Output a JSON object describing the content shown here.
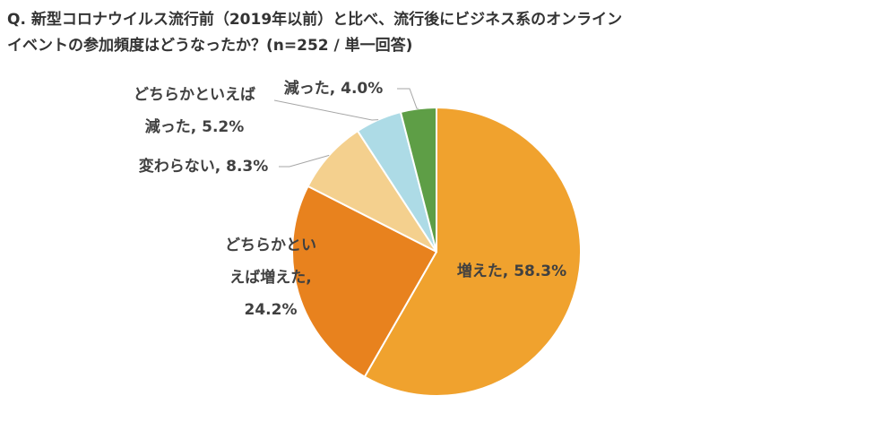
{
  "title_lines": [
    "Q. 新型コロナウイルス流行前（2019年以前）と比べ、流行後にビジネス系のオンライン",
    "イベントの参加頻度はどうなったか？(n=252 / 単一回答)"
  ],
  "chart_data": {
    "type": "pie",
    "start_angle_deg": 0,
    "direction": "clockwise",
    "slices": [
      {
        "label_lines": [
          "増えた, 58.3%"
        ],
        "category": "増えた",
        "value": 58.3,
        "color": "#F0A22E"
      },
      {
        "label_lines": [
          "どちらかとい",
          "えば増えた,",
          "24.2%"
        ],
        "category": "どちらかといえば増えた",
        "value": 24.2,
        "color": "#E8821E"
      },
      {
        "label_lines": [
          "変わらない, 8.3%"
        ],
        "category": "変わらない",
        "value": 8.3,
        "color": "#F4D08E"
      },
      {
        "label_lines": [
          "どちらかといえば",
          "減った, 5.2%"
        ],
        "category": "どちらかといえば減った",
        "value": 5.2,
        "color": "#ADDBE6"
      },
      {
        "label_lines": [
          "減った, 4.0%"
        ],
        "category": "減った",
        "value": 4.0,
        "color": "#5E9E46"
      }
    ]
  }
}
